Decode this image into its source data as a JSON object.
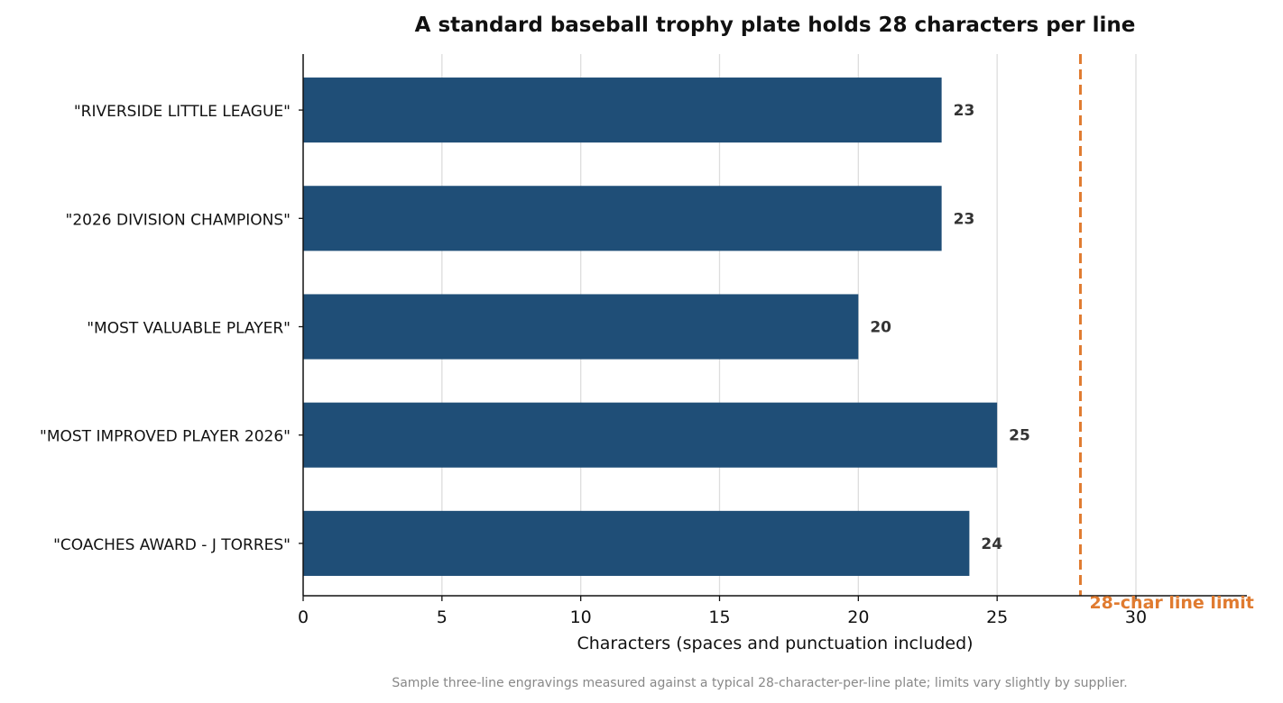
{
  "chart_data": {
    "type": "bar",
    "orientation": "horizontal",
    "title": "A standard baseball trophy plate holds 28 characters per line",
    "xlabel": "Characters (spaces and punctuation included)",
    "ylabel": "",
    "categories": [
      "\"RIVERSIDE LITTLE LEAGUE\"",
      "\"2026 DIVISION CHAMPIONS\"",
      "\"MOST VALUABLE PLAYER\"",
      "\"MOST IMPROVED PLAYER 2026\"",
      "\"COACHES AWARD - J TORRES\""
    ],
    "values": [
      23,
      23,
      20,
      25,
      24
    ],
    "data_labels": [
      "23",
      "23",
      "20",
      "25",
      "24"
    ],
    "xlim": [
      0,
      34
    ],
    "xticks": [
      0,
      5,
      10,
      15,
      20,
      25,
      30
    ],
    "xtick_labels": [
      "0",
      "5",
      "10",
      "15",
      "20",
      "25",
      "30"
    ],
    "grid": "vertical",
    "reference_line": {
      "value": 28,
      "label": "28-char line limit",
      "style": "dashed"
    },
    "caption": "Sample three-line engravings measured against a typical 28-character-per-line plate; limits vary slightly by supplier.",
    "colors": {
      "bar": "#1f4e77",
      "reference": "#e07b30",
      "grid": "#dddddd",
      "axis": "#111111"
    }
  }
}
